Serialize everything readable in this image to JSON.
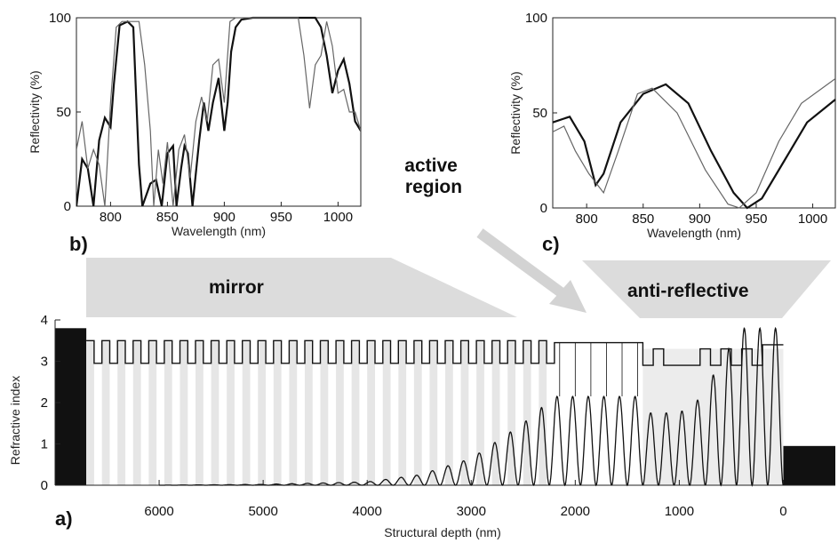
{
  "chart_data": [
    {
      "id": "a",
      "type": "line",
      "panel_label": "a)",
      "xlabel": "Structural depth (nm)",
      "ylabel": "Refractive index",
      "xlim": [
        7000,
        -500
      ],
      "ylim": [
        0,
        4
      ],
      "x_ticks": [
        6000,
        5000,
        4000,
        3000,
        2000,
        1000,
        0
      ],
      "y_ticks": [
        0,
        1,
        2,
        3,
        4
      ],
      "index_profile": {
        "mirror": {
          "start": 6700,
          "end": 2200,
          "periods": 30,
          "n_high": 3.5,
          "n_low": 2.95
        },
        "active": {
          "start": 2200,
          "end": 1350,
          "n": 3.45
        },
        "anti_reflective": [
          {
            "from": 1350,
            "to": 1250,
            "n": 2.9
          },
          {
            "from": 1250,
            "to": 1150,
            "n": 3.3
          },
          {
            "from": 1150,
            "to": 800,
            "n": 2.9
          },
          {
            "from": 800,
            "to": 700,
            "n": 3.3
          },
          {
            "from": 700,
            "to": 600,
            "n": 2.9
          },
          {
            "from": 600,
            "to": 500,
            "n": 3.3
          },
          {
            "from": 500,
            "to": 400,
            "n": 2.9
          },
          {
            "from": 400,
            "to": 300,
            "n": 3.3
          },
          {
            "from": 300,
            "to": 200,
            "n": 2.9
          },
          {
            "from": 200,
            "to": 0,
            "n": 3.4
          }
        ]
      },
      "substrate": {
        "from": 7000,
        "to": 6700,
        "n": 3.8
      },
      "ambient": {
        "from": 0,
        "to": -500,
        "n": 0.95
      },
      "field_intensity": {
        "envelope": [
          [
            6000,
            0
          ],
          [
            5000,
            0.02
          ],
          [
            4000,
            0.08
          ],
          [
            3500,
            0.25
          ],
          [
            3000,
            0.65
          ],
          [
            2500,
            1.5
          ],
          [
            2200,
            2.15
          ],
          [
            1350,
            2.15
          ],
          [
            1300,
            1.75
          ],
          [
            1000,
            1.75
          ],
          [
            800,
            2.1
          ],
          [
            600,
            3.0
          ],
          [
            400,
            3.8
          ],
          [
            0,
            3.8
          ]
        ],
        "period_nm": 150
      },
      "regions": [
        {
          "label": "mirror"
        },
        {
          "label": "active region"
        },
        {
          "label": "anti-reflective"
        }
      ]
    },
    {
      "id": "b",
      "type": "line",
      "panel_label": "b)",
      "xlabel": "Wavelength (nm)",
      "ylabel": "Reflectivity (%)",
      "xlim": [
        770,
        1020
      ],
      "ylim": [
        0,
        100
      ],
      "x_ticks": [
        800,
        850,
        900,
        950,
        1000
      ],
      "y_ticks": [
        0,
        50,
        100
      ],
      "series": [
        {
          "points": [
            [
              770,
              0
            ],
            [
              775,
              25
            ],
            [
              780,
              20
            ],
            [
              785,
              0
            ],
            [
              790,
              35
            ],
            [
              795,
              47
            ],
            [
              800,
              42
            ],
            [
              803,
              65
            ],
            [
              808,
              96
            ],
            [
              815,
              98
            ],
            [
              820,
              95
            ],
            [
              822,
              65
            ],
            [
              825,
              22
            ],
            [
              828,
              0
            ],
            [
              835,
              12
            ],
            [
              840,
              14
            ],
            [
              845,
              0
            ],
            [
              850,
              28
            ],
            [
              855,
              32
            ],
            [
              858,
              0
            ],
            [
              862,
              20
            ],
            [
              865,
              32
            ],
            [
              868,
              28
            ],
            [
              872,
              0
            ],
            [
              878,
              35
            ],
            [
              882,
              55
            ],
            [
              886,
              40
            ],
            [
              890,
              55
            ],
            [
              895,
              68
            ],
            [
              900,
              40
            ],
            [
              903,
              55
            ],
            [
              906,
              82
            ],
            [
              910,
              95
            ],
            [
              915,
              99
            ],
            [
              925,
              100
            ],
            [
              980,
              100
            ],
            [
              985,
              95
            ],
            [
              990,
              80
            ],
            [
              995,
              60
            ],
            [
              1000,
              72
            ],
            [
              1005,
              78
            ],
            [
              1010,
              65
            ],
            [
              1015,
              45
            ],
            [
              1020,
              40
            ]
          ]
        },
        {
          "points": [
            [
              770,
              30
            ],
            [
              775,
              45
            ],
            [
              780,
              20
            ],
            [
              785,
              30
            ],
            [
              790,
              22
            ],
            [
              795,
              0
            ],
            [
              800,
              55
            ],
            [
              805,
              95
            ],
            [
              810,
              98
            ],
            [
              825,
              98
            ],
            [
              830,
              75
            ],
            [
              835,
              40
            ],
            [
              838,
              0
            ],
            [
              842,
              30
            ],
            [
              846,
              12
            ],
            [
              850,
              34
            ],
            [
              855,
              0
            ],
            [
              860,
              30
            ],
            [
              865,
              38
            ],
            [
              870,
              15
            ],
            [
              875,
              45
            ],
            [
              880,
              58
            ],
            [
              885,
              45
            ],
            [
              890,
              75
            ],
            [
              895,
              78
            ],
            [
              900,
              55
            ],
            [
              905,
              98
            ],
            [
              910,
              100
            ],
            [
              965,
              100
            ],
            [
              970,
              80
            ],
            [
              975,
              52
            ],
            [
              980,
              75
            ],
            [
              985,
              80
            ],
            [
              990,
              98
            ],
            [
              995,
              85
            ],
            [
              1000,
              60
            ],
            [
              1005,
              62
            ],
            [
              1010,
              50
            ],
            [
              1015,
              50
            ],
            [
              1020,
              40
            ]
          ]
        }
      ]
    },
    {
      "id": "c",
      "type": "line",
      "panel_label": "c)",
      "xlabel": "Wavelength (nm)",
      "ylabel": "Reflectivity (%)",
      "xlim": [
        770,
        1020
      ],
      "ylim": [
        0,
        100
      ],
      "x_ticks": [
        800,
        850,
        900,
        950,
        1000
      ],
      "y_ticks": [
        0,
        50,
        100
      ],
      "series": [
        {
          "points": [
            [
              770,
              45
            ],
            [
              785,
              48
            ],
            [
              798,
              35
            ],
            [
              808,
              12
            ],
            [
              815,
              18
            ],
            [
              830,
              45
            ],
            [
              850,
              60
            ],
            [
              870,
              65
            ],
            [
              890,
              55
            ],
            [
              910,
              30
            ],
            [
              930,
              8
            ],
            [
              942,
              0
            ],
            [
              955,
              5
            ],
            [
              975,
              25
            ],
            [
              995,
              45
            ],
            [
              1020,
              57
            ]
          ]
        },
        {
          "points": [
            [
              770,
              40
            ],
            [
              780,
              43
            ],
            [
              790,
              30
            ],
            [
              802,
              18
            ],
            [
              815,
              8
            ],
            [
              828,
              30
            ],
            [
              845,
              60
            ],
            [
              858,
              63
            ],
            [
              880,
              50
            ],
            [
              905,
              20
            ],
            [
              925,
              2
            ],
            [
              935,
              0
            ],
            [
              950,
              8
            ],
            [
              970,
              35
            ],
            [
              990,
              55
            ],
            [
              1020,
              68
            ]
          ]
        }
      ]
    }
  ]
}
